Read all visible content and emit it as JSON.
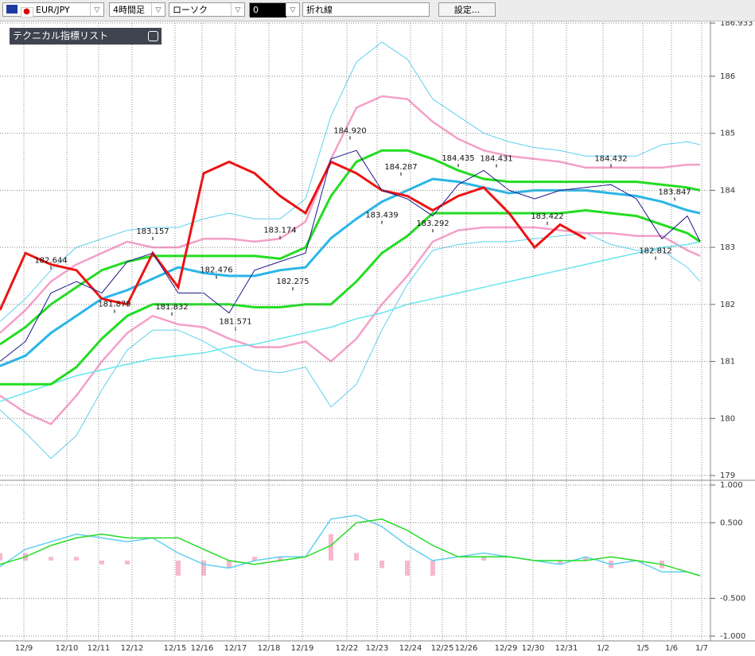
{
  "toolbar": {
    "symbol": "EUR/JPY",
    "period": "4時間足",
    "style": "ローソク",
    "counter": "0",
    "mode": "折れ線",
    "settings": "設定..."
  },
  "panel_title": "テクニカル指標リスト",
  "chart_data": [
    {
      "type": "line",
      "x": [
        0,
        4,
        8,
        12,
        16,
        20,
        24,
        28,
        32,
        36,
        40,
        44,
        48,
        52,
        56,
        60,
        64,
        68,
        72,
        76,
        80,
        84,
        88,
        92,
        96,
        100,
        104,
        108,
        110
      ],
      "xlim": [
        0,
        112
      ],
      "xticks": [
        {
          "value": 3.75,
          "label": "12/9"
        },
        {
          "value": 10.5,
          "label": "12/10"
        },
        {
          "value": 15.5,
          "label": "12/11"
        },
        {
          "value": 20.75,
          "label": "12/12"
        },
        {
          "value": 27.5,
          "label": "12/15"
        },
        {
          "value": 31.75,
          "label": "12/16"
        },
        {
          "value": 37,
          "label": "12/17"
        },
        {
          "value": 42.25,
          "label": "12/18"
        },
        {
          "value": 47.5,
          "label": "12/19"
        },
        {
          "value": 54.5,
          "label": "12/22"
        },
        {
          "value": 59.25,
          "label": "12/23"
        },
        {
          "value": 64.5,
          "label": "12/24"
        },
        {
          "value": 69.5,
          "label": "12/25"
        },
        {
          "value": 73.25,
          "label": "12/26"
        },
        {
          "value": 79.5,
          "label": "12/29"
        },
        {
          "value": 83.75,
          "label": "12/30"
        },
        {
          "value": 89,
          "label": "12/31"
        },
        {
          "value": 94.75,
          "label": "1/2"
        },
        {
          "value": 101,
          "label": "1/5"
        },
        {
          "value": 105.5,
          "label": "1/6"
        },
        {
          "value": 110.25,
          "label": "1/7"
        }
      ],
      "ylim": [
        179,
        186.933
      ],
      "yticks": [
        179,
        180,
        181,
        182,
        183,
        184,
        185,
        186,
        {
          "value": 186.933,
          "label": "186.933"
        }
      ],
      "grid": true,
      "series": [
        {
          "color": "#5fd0f0",
          "values": [
            181.7,
            182.1,
            182.6,
            183.0,
            183.15,
            183.3,
            183.35,
            183.35,
            183.5,
            183.6,
            183.5,
            183.5,
            183.85,
            185.3,
            186.25,
            186.6,
            186.3,
            185.6,
            185.3,
            185.0,
            184.85,
            184.75,
            184.7,
            184.6,
            184.6,
            184.6,
            184.8,
            184.85,
            184.8
          ]
        },
        {
          "color": "#5fd0f0",
          "values": [
            180.15,
            179.75,
            179.3,
            179.7,
            180.5,
            181.2,
            181.55,
            181.55,
            181.35,
            181.1,
            180.85,
            180.8,
            180.9,
            180.2,
            180.6,
            181.55,
            182.35,
            182.95,
            183.05,
            183.1,
            183.1,
            183.15,
            183.2,
            183.25,
            183.05,
            182.95,
            182.95,
            182.65,
            182.4
          ]
        },
        {
          "color": "#f4a0c8",
          "values": [
            181.5,
            181.9,
            182.4,
            182.7,
            182.9,
            183.1,
            183.0,
            183.0,
            183.15,
            183.15,
            183.1,
            183.15,
            183.45,
            184.55,
            185.45,
            185.65,
            185.6,
            185.2,
            184.9,
            184.7,
            184.6,
            184.55,
            184.5,
            184.4,
            184.4,
            184.4,
            184.4,
            184.45,
            184.45
          ]
        },
        {
          "color": "#f4a0c8",
          "values": [
            180.4,
            180.1,
            179.9,
            180.4,
            181.0,
            181.5,
            181.8,
            181.65,
            181.6,
            181.4,
            181.25,
            181.25,
            181.35,
            181.0,
            181.4,
            182.0,
            182.5,
            183.1,
            183.3,
            183.35,
            183.35,
            183.35,
            183.3,
            183.25,
            183.25,
            183.2,
            183.2,
            182.95,
            182.85
          ]
        },
        {
          "color": "#66e6ee",
          "values": [
            180.3,
            180.45,
            180.6,
            180.75,
            180.85,
            180.95,
            181.05,
            181.1,
            181.15,
            181.25,
            181.3,
            181.4,
            181.5,
            181.6,
            181.75,
            181.85,
            182.0,
            182.1,
            182.2,
            182.3,
            182.4,
            182.5,
            182.6,
            182.7,
            182.8,
            182.9,
            183.0,
            183.05,
            183.1
          ]
        },
        {
          "color": "#22dd22",
          "values": [
            181.3,
            181.6,
            182.0,
            182.3,
            182.6,
            182.75,
            182.85,
            182.85,
            182.85,
            182.85,
            182.85,
            182.8,
            183.0,
            183.9,
            184.5,
            184.7,
            184.7,
            184.55,
            184.35,
            184.2,
            184.15,
            184.15,
            184.15,
            184.15,
            184.15,
            184.15,
            184.1,
            184.05,
            184.0
          ]
        },
        {
          "color": "#22dd22",
          "values": [
            180.6,
            180.6,
            180.6,
            180.9,
            181.4,
            181.8,
            182.0,
            182.0,
            182.0,
            182.0,
            181.95,
            181.95,
            182.0,
            182.0,
            182.4,
            182.9,
            183.2,
            183.6,
            183.6,
            183.6,
            183.6,
            183.6,
            183.6,
            183.65,
            183.6,
            183.55,
            183.4,
            183.25,
            183.1
          ]
        },
        {
          "color": "#29b6e8",
          "values": [
            180.92,
            181.1,
            181.5,
            181.8,
            182.1,
            182.25,
            182.45,
            182.65,
            182.55,
            182.5,
            182.5,
            182.6,
            182.65,
            183.16,
            183.5,
            183.8,
            184.0,
            184.2,
            184.15,
            184.05,
            183.95,
            184.0,
            184.0,
            184.0,
            183.95,
            183.9,
            183.8,
            183.65,
            183.6
          ]
        },
        {
          "color": "#ee1111",
          "values": [
            181.9,
            182.9,
            182.7,
            182.6,
            182.1,
            182.0,
            182.9,
            182.3,
            184.3,
            184.5,
            184.3,
            183.9,
            183.6,
            184.5,
            184.3,
            184.0,
            183.9,
            183.65,
            183.9,
            184.05,
            183.6,
            183.0,
            183.4,
            183.15,
            null,
            null,
            null,
            null,
            null
          ]
        },
        {
          "color": "#1a1a8c",
          "values": [
            181.0,
            181.35,
            182.2,
            182.4,
            182.2,
            182.75,
            182.9,
            182.2,
            182.2,
            181.85,
            182.6,
            182.75,
            182.9,
            184.55,
            184.7,
            184.0,
            183.85,
            183.55,
            184.1,
            184.35,
            184.0,
            183.85,
            184.0,
            184.05,
            184.1,
            183.85,
            183.15,
            183.55,
            183.1
          ]
        }
      ],
      "annotations": [
        {
          "x": 8,
          "value": 182.644,
          "label": "182.644"
        },
        {
          "x": 24,
          "value": 183.157,
          "label": "183.157"
        },
        {
          "x": 18,
          "value": 181.879,
          "label": "181.879"
        },
        {
          "x": 27,
          "value": 181.832,
          "label": "181.832"
        },
        {
          "x": 34,
          "value": 182.476,
          "label": "182.476"
        },
        {
          "x": 37,
          "value": 181.571,
          "label": "181.571"
        },
        {
          "x": 44,
          "value": 183.174,
          "label": "183.174"
        },
        {
          "x": 46,
          "value": 182.275,
          "label": "182.275"
        },
        {
          "x": 55,
          "value": 184.92,
          "label": "184.920"
        },
        {
          "x": 63,
          "value": 184.287,
          "label": "184.287"
        },
        {
          "x": 60,
          "value": 183.439,
          "label": "183.439"
        },
        {
          "x": 68,
          "value": 183.292,
          "label": "183.292"
        },
        {
          "x": 72,
          "value": 184.435,
          "label": "184.435"
        },
        {
          "x": 78,
          "value": 184.431,
          "label": "184.431"
        },
        {
          "x": 86,
          "value": 183.422,
          "label": "183.422"
        },
        {
          "x": 96,
          "value": 184.432,
          "label": "184.432"
        },
        {
          "x": 106,
          "value": 183.847,
          "label": "183.847"
        },
        {
          "x": 103,
          "value": 182.812,
          "label": "182.812"
        }
      ]
    },
    {
      "type": "line",
      "x": [
        0,
        4,
        8,
        12,
        16,
        20,
        24,
        28,
        32,
        36,
        40,
        44,
        48,
        52,
        56,
        60,
        64,
        68,
        72,
        76,
        80,
        84,
        88,
        92,
        96,
        100,
        104,
        108,
        110
      ],
      "xlim": [
        0,
        112
      ],
      "ylim": [
        -1,
        1
      ],
      "yticks": [
        {
          "value": 1,
          "label": "1.000"
        },
        {
          "value": 0.5,
          "label": "0.500"
        },
        {
          "value": -0.5,
          "label": "-0.500"
        },
        {
          "value": -1,
          "label": "-1.000"
        }
      ],
      "grid": true,
      "series": [
        {
          "type": "bar",
          "color": "#f8b8cc",
          "values": [
            0.1,
            0.1,
            0.05,
            0.05,
            -0.05,
            -0.05,
            0,
            -0.2,
            -0.2,
            -0.1,
            0.05,
            0.05,
            0,
            0.35,
            0.1,
            -0.1,
            -0.2,
            -0.2,
            0,
            0.05,
            0,
            0,
            -0.05,
            0.05,
            -0.1,
            0,
            -0.1,
            0,
            0
          ]
        },
        {
          "color": "#5fd0f0",
          "values": [
            -0.08,
            0.15,
            0.25,
            0.35,
            0.3,
            0.25,
            0.3,
            0.1,
            -0.05,
            -0.1,
            0.0,
            0.05,
            0.05,
            0.55,
            0.6,
            0.45,
            0.2,
            0.0,
            0.05,
            0.1,
            0.05,
            0.0,
            -0.05,
            0.05,
            -0.05,
            0.0,
            -0.15,
            -0.15,
            -0.2
          ]
        },
        {
          "color": "#22dd22",
          "values": [
            -0.05,
            0.05,
            0.2,
            0.3,
            0.35,
            0.3,
            0.3,
            0.3,
            0.15,
            0.0,
            -0.05,
            0.0,
            0.05,
            0.2,
            0.5,
            0.55,
            0.4,
            0.2,
            0.05,
            0.05,
            0.05,
            0.0,
            0.0,
            0.0,
            0.05,
            0.0,
            -0.05,
            -0.15,
            -0.2
          ]
        }
      ]
    }
  ]
}
